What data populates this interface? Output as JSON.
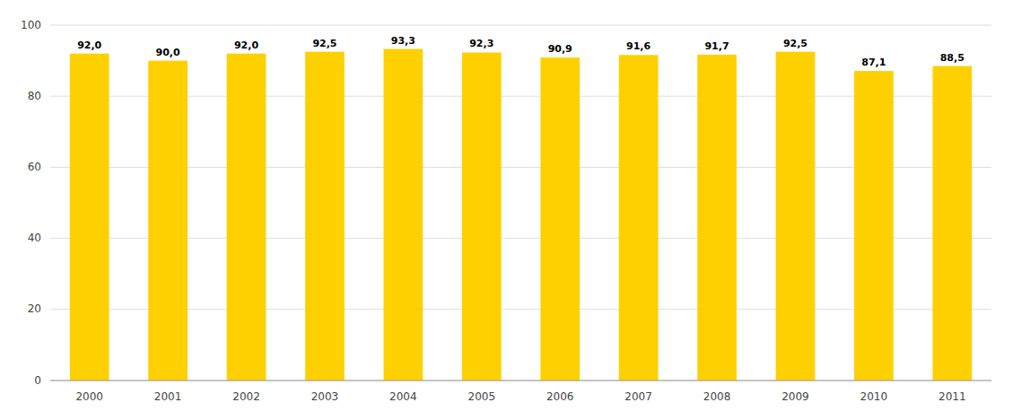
{
  "chart_data": {
    "type": "bar",
    "categories": [
      "2000",
      "2001",
      "2002",
      "2003",
      "2004",
      "2005",
      "2006",
      "2007",
      "2008",
      "2009",
      "2010",
      "2011"
    ],
    "values": [
      92.0,
      90.0,
      92.0,
      92.5,
      93.3,
      92.3,
      90.9,
      91.6,
      91.7,
      92.5,
      87.1,
      88.5
    ],
    "value_labels": [
      "92,0",
      "90,0",
      "92,0",
      "92,5",
      "93,3",
      "92,3",
      "90,9",
      "91,6",
      "91,7",
      "92,5",
      "87,1",
      "88,5"
    ],
    "data_labels": true,
    "color": "#FFD000",
    "ylim": [
      0,
      100
    ],
    "yticks": [
      0,
      20,
      40,
      60,
      80,
      100
    ],
    "grid": true
  }
}
